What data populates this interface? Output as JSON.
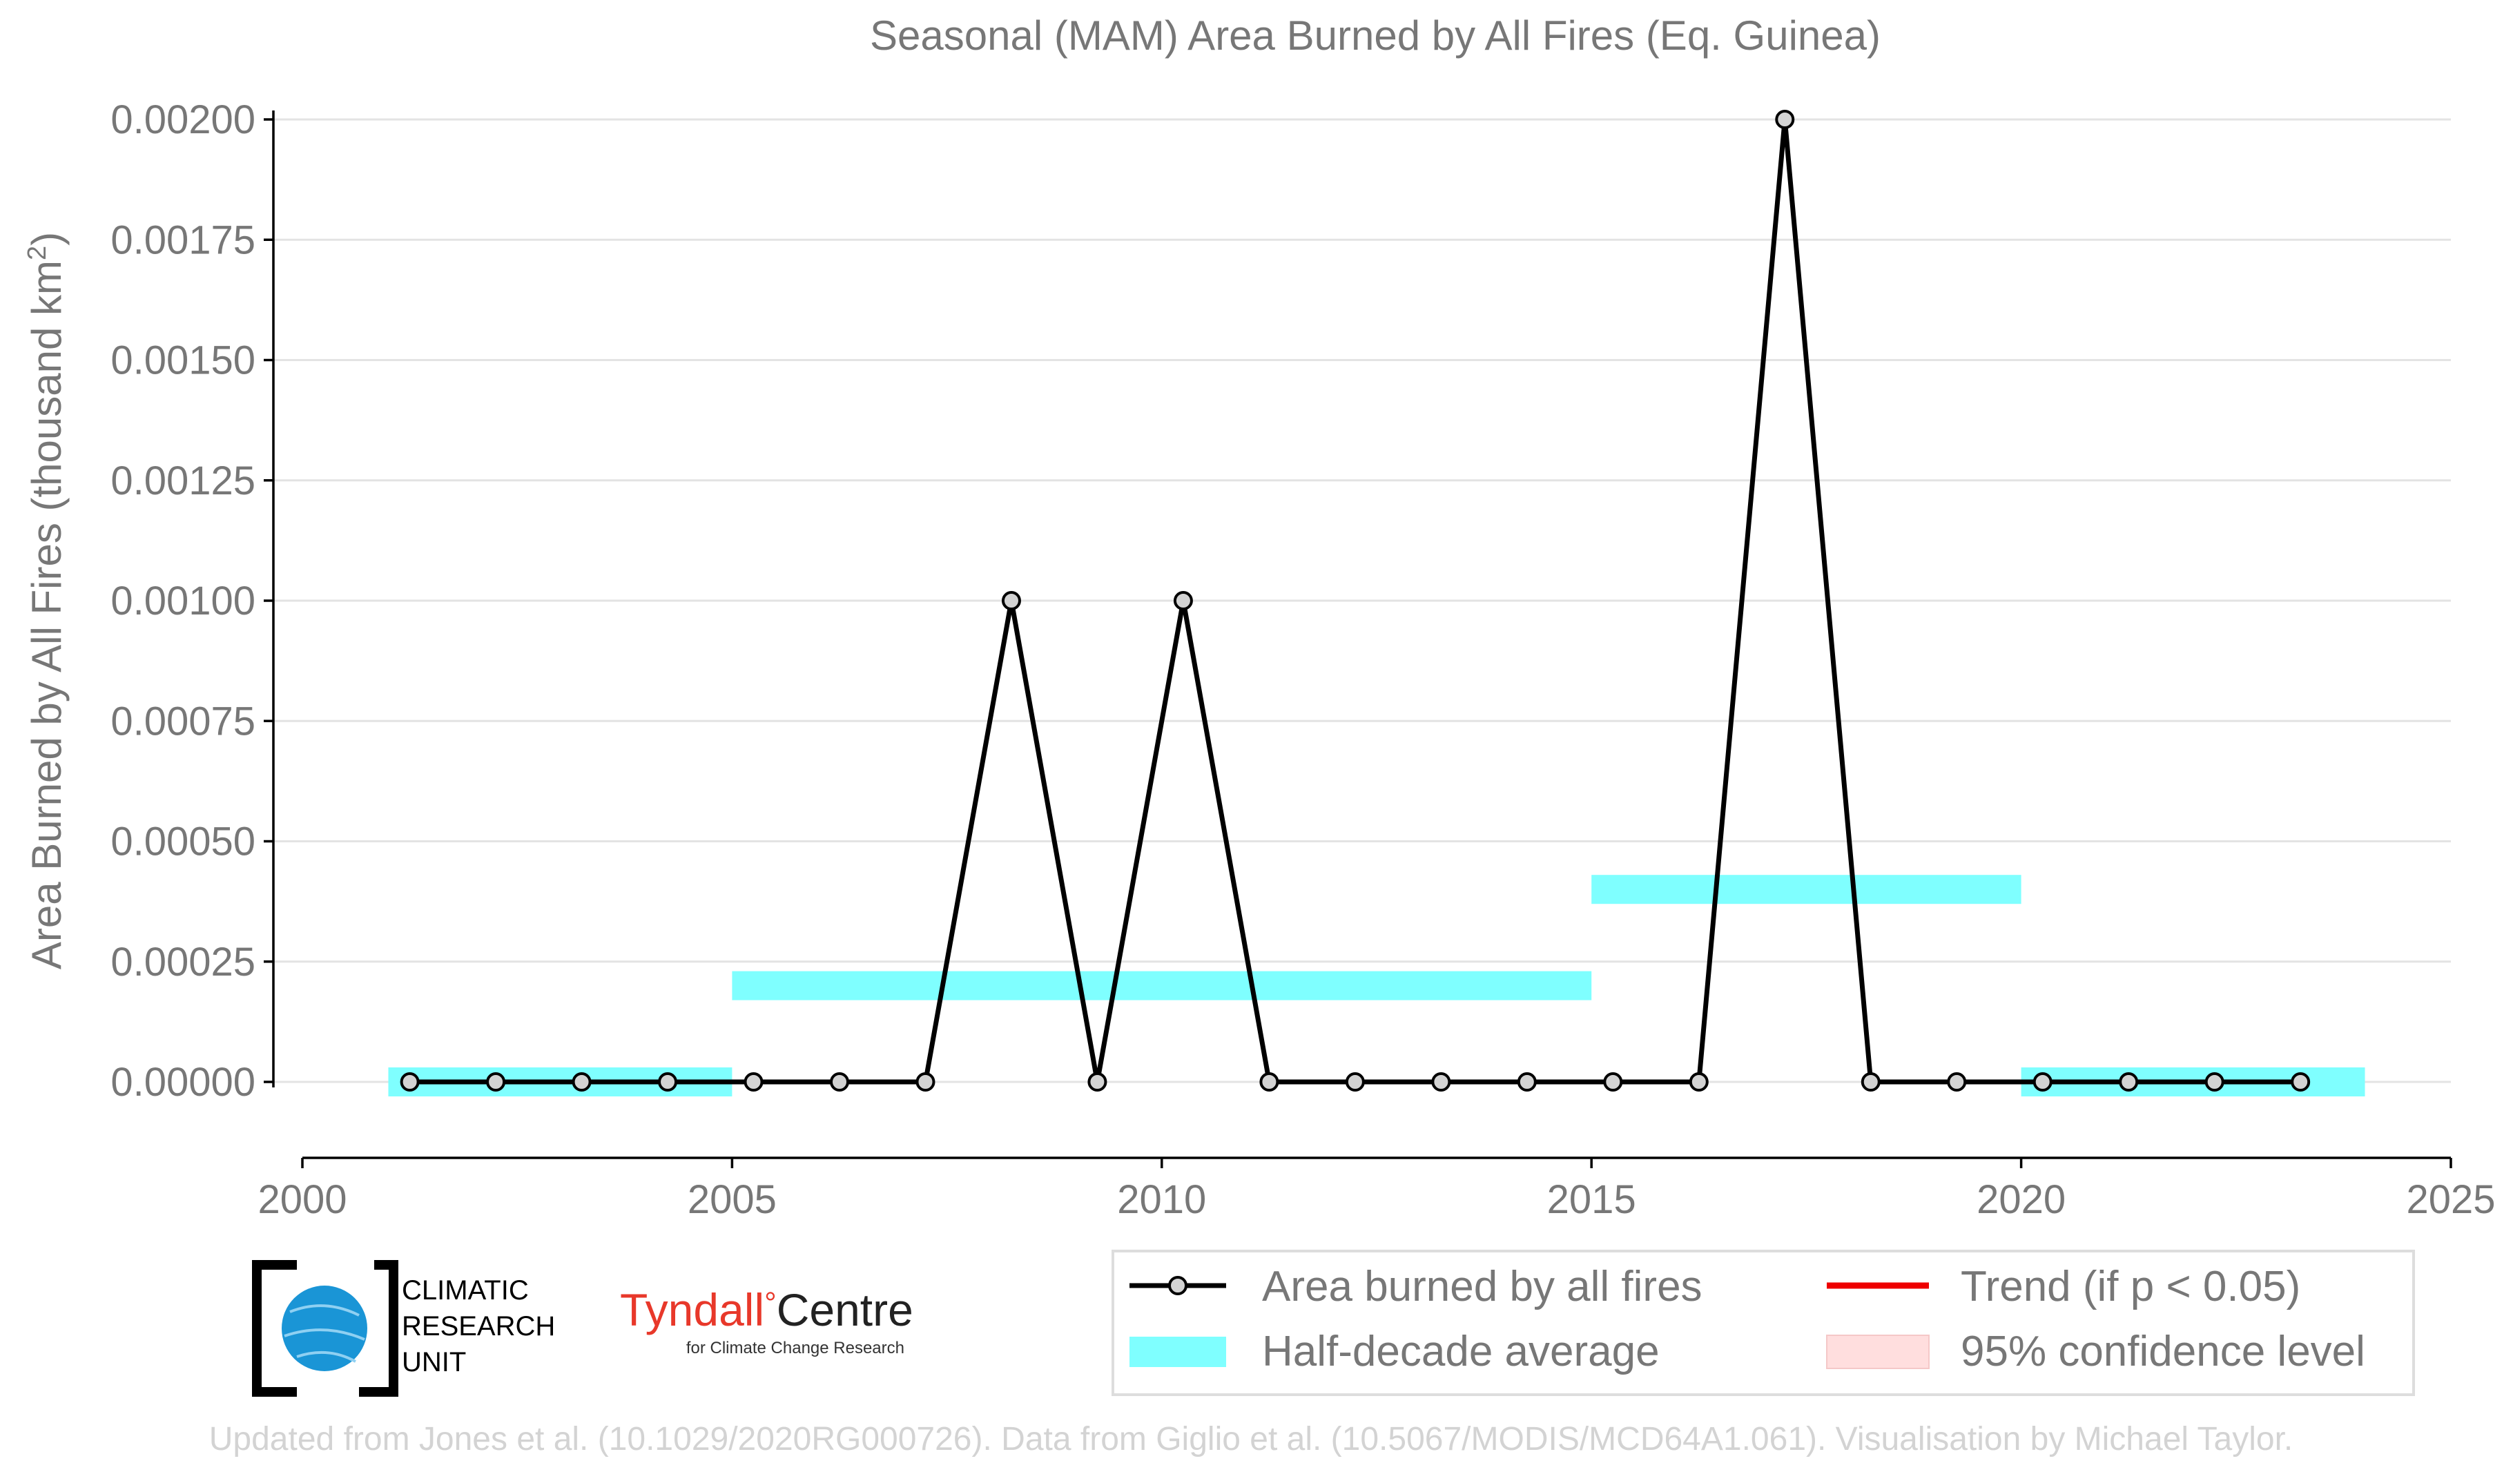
{
  "chart_data": {
    "type": "line",
    "title": "Seasonal (MAM) Area Burned by All Fires (Eq. Guinea)",
    "ylabel_main": "Area Burned by All Fires (thousand km",
    "ylabel_sup": "2",
    "ylabel_close": ")",
    "xlim": [
      2000,
      2025
    ],
    "ylim": [
      -0.00015,
      0.00205
    ],
    "x_ticks": [
      2000,
      2005,
      2010,
      2015,
      2020,
      2025
    ],
    "x_tick_labels": [
      "2000",
      "2005",
      "2010",
      "2015",
      "2020",
      "2025"
    ],
    "y_ticks": [
      0,
      0.00025,
      0.0005,
      0.00075,
      0.001,
      0.00125,
      0.0015,
      0.00175,
      0.002
    ],
    "y_tick_labels": [
      "0.00000",
      "0.00025",
      "0.00050",
      "0.00075",
      "0.00100",
      "0.00125",
      "0.00150",
      "0.00175",
      "0.00200"
    ],
    "grid": true,
    "series": [
      {
        "name": "Area burned by all fires",
        "color": "#000000",
        "x": [
          2001.25,
          2002.25,
          2003.25,
          2004.25,
          2005.25,
          2006.25,
          2007.25,
          2008.25,
          2009.25,
          2010.25,
          2011.25,
          2012.25,
          2013.25,
          2014.25,
          2015.25,
          2016.25,
          2017.25,
          2018.25,
          2019.25,
          2020.25,
          2021.25,
          2022.25,
          2023.25
        ],
        "values": [
          0,
          0,
          0,
          0,
          0,
          0,
          0,
          0.001,
          0,
          0.001,
          0,
          0,
          0,
          0,
          0,
          0,
          0.002,
          0,
          0,
          0,
          0,
          0,
          0
        ]
      }
    ],
    "half_decade_average": {
      "name": "Half-decade average",
      "color": "#7fffff",
      "segments": [
        {
          "x_start": 2001,
          "x_end": 2005,
          "value": 0
        },
        {
          "x_start": 2005,
          "x_end": 2015,
          "value": 0.0002
        },
        {
          "x_start": 2015,
          "x_end": 2020,
          "value": 0.0004
        },
        {
          "x_start": 2020,
          "x_end": 2024,
          "value": 0
        }
      ]
    },
    "legend": {
      "placement": "bottom-right",
      "items": [
        {
          "label": "Area burned by all fires",
          "kind": "line-marker",
          "color": "#000000"
        },
        {
          "label": "Trend (if p < 0.05)",
          "kind": "line",
          "color": "#ee0000"
        },
        {
          "label": "Half-decade average",
          "kind": "band",
          "color": "#7fffff"
        },
        {
          "label": "95% confidence level",
          "kind": "band",
          "color": "#ffdede"
        }
      ]
    }
  },
  "logos": {
    "cru_lines": [
      "CLIMATIC",
      "RESEARCH",
      "UNIT"
    ],
    "tyndall_main": "Tyndall",
    "tyndall_degree": "°",
    "tyndall_centre": "Centre",
    "tyndall_sub": "for Climate Change Research"
  },
  "colors": {
    "tyndall_red": "#e8382a",
    "cru_blue": "#1a95d6"
  },
  "credit": "Updated from Jones et al. (10.1029/2020RG000726). Data from Giglio et al. (10.5067/MODIS/MCD64A1.061). Visualisation by Michael Taylor."
}
